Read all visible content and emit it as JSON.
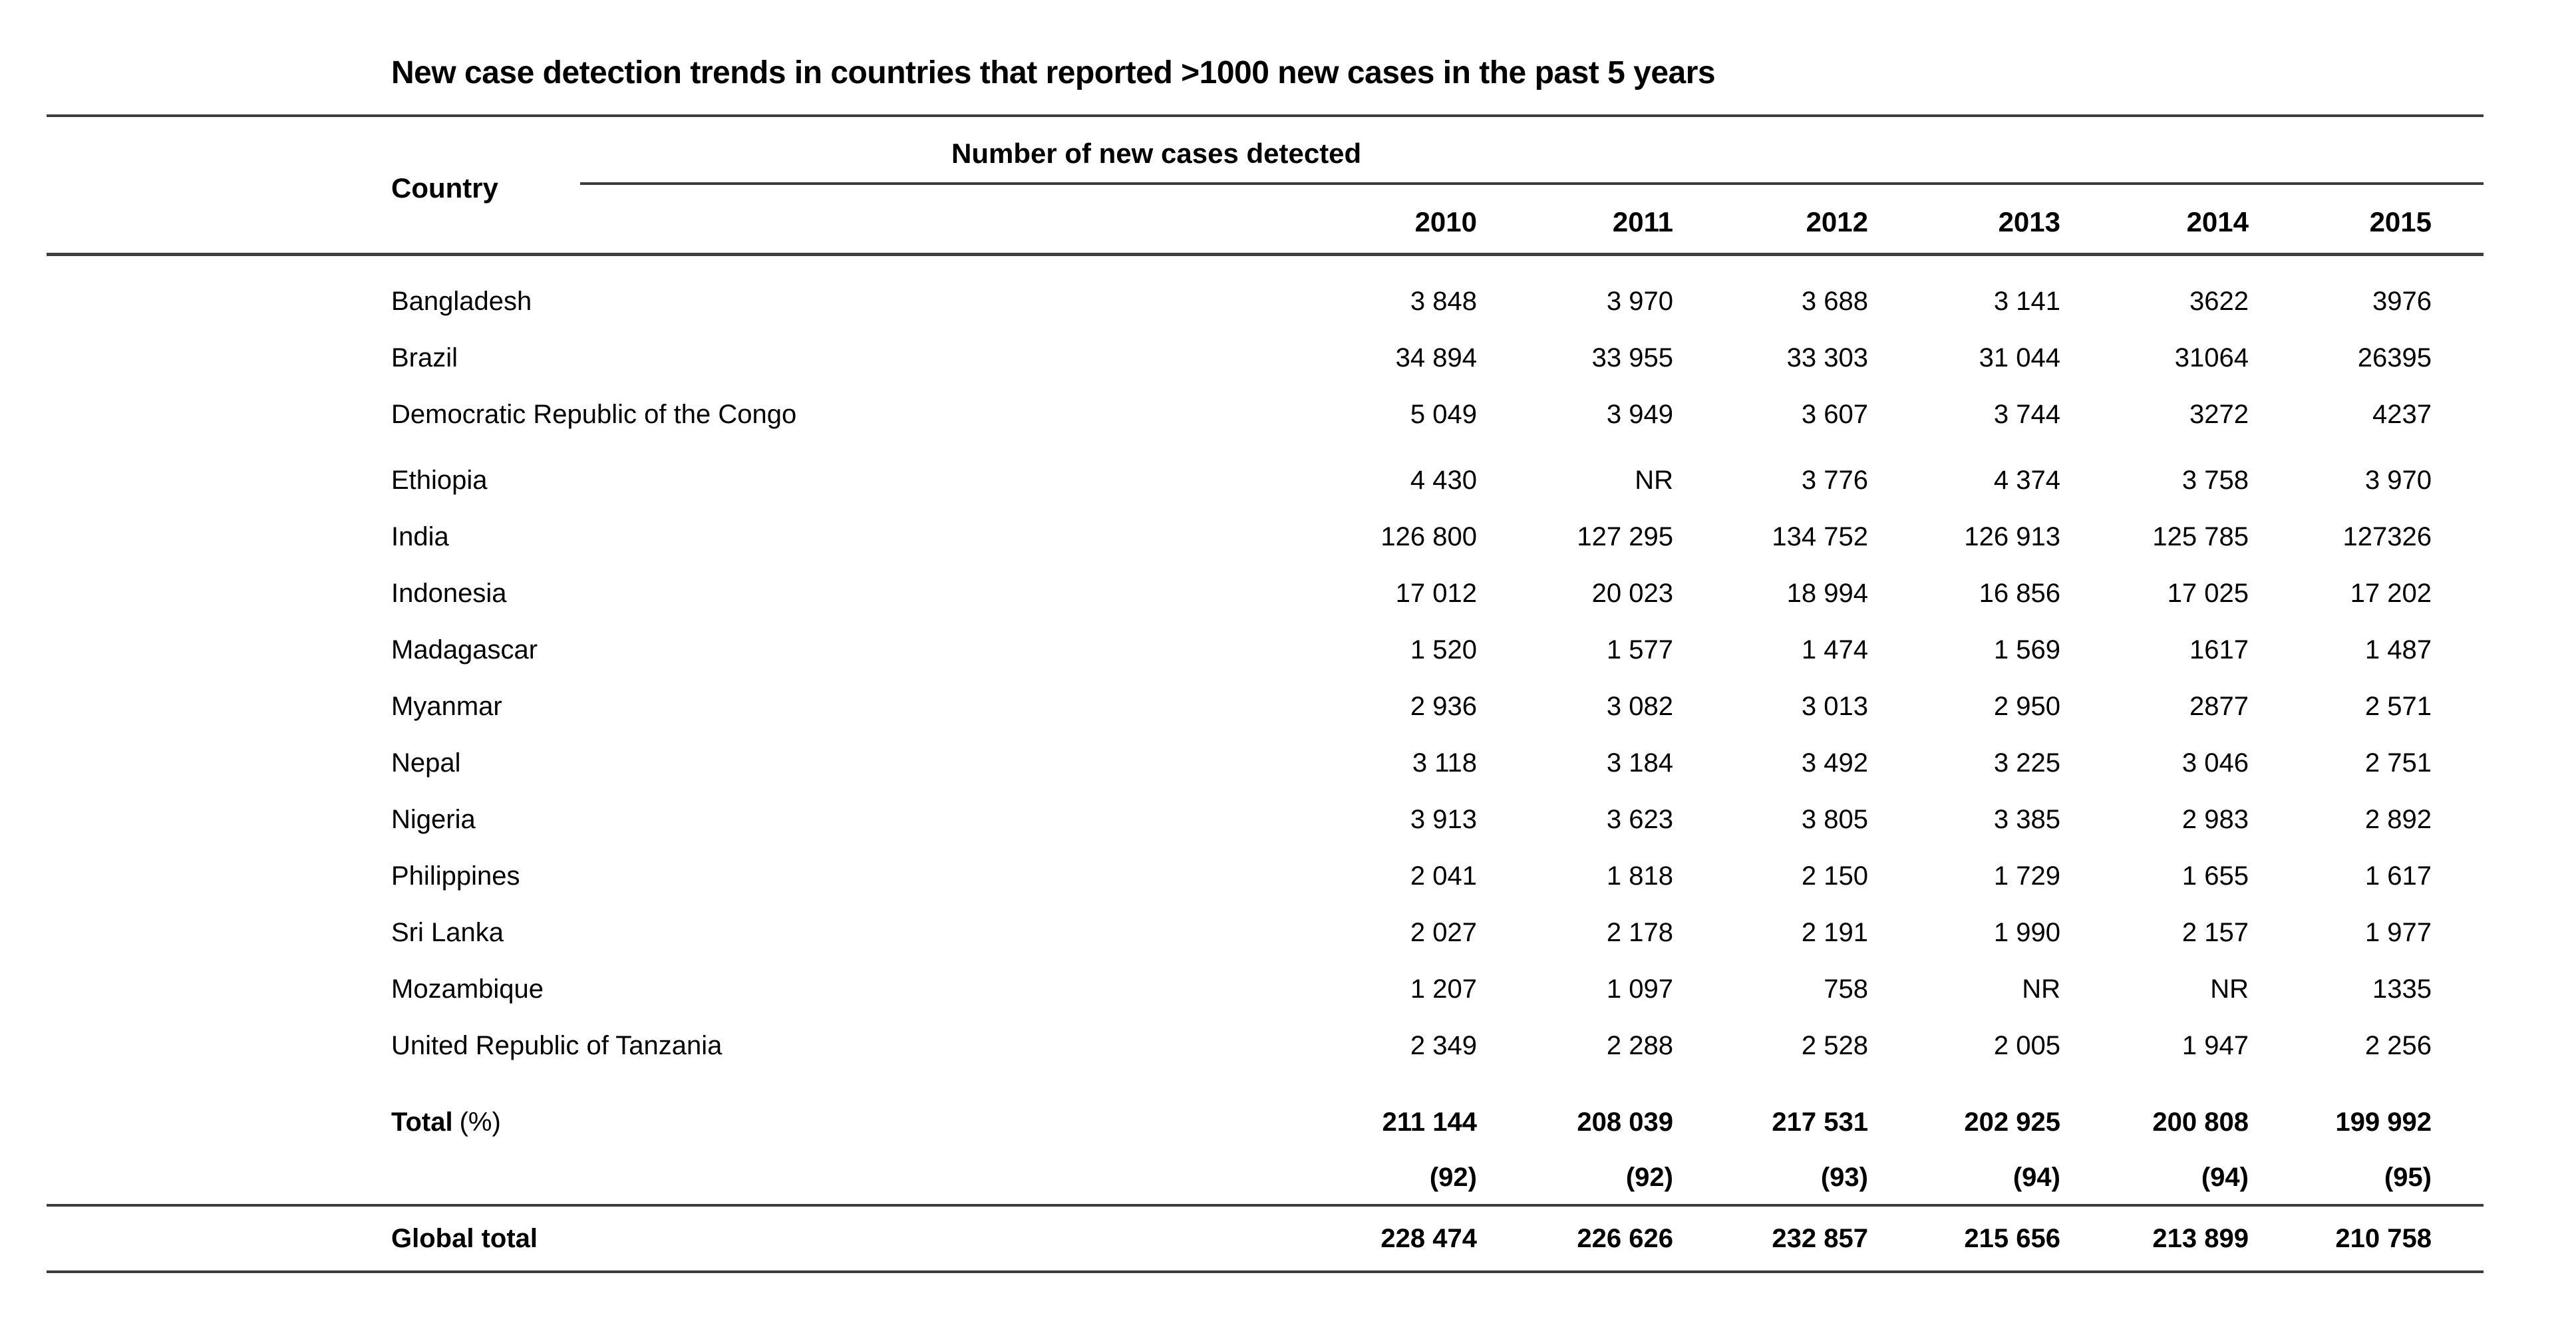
{
  "title": "New case detection trends in countries that reported >1000 new cases in the past 5 years",
  "table": {
    "country_header": "Country",
    "group_header": "Number of new cases detected",
    "years": [
      "2010",
      "2011",
      "2012",
      "2013",
      "2014",
      "2015"
    ],
    "rows": [
      {
        "country": "Bangladesh",
        "values": [
          "3 848",
          "3 970",
          "3 688",
          "3 141",
          "3622",
          "3976"
        ]
      },
      {
        "country": "Brazil",
        "values": [
          "34 894",
          "33 955",
          "33 303",
          "31 044",
          "31064",
          "26395"
        ]
      },
      {
        "country": "Democratic Republic of the Congo",
        "values": [
          "5 049",
          "3 949",
          "3 607",
          "3 744",
          "3272",
          "4237"
        ]
      },
      {
        "country": "Ethiopia",
        "values": [
          "4 430",
          "NR",
          "3 776",
          "4 374",
          "3 758",
          "3 970"
        ]
      },
      {
        "country": "India",
        "values": [
          "126 800",
          "127 295",
          "134 752",
          "126 913",
          "125 785",
          "127326"
        ]
      },
      {
        "country": "Indonesia",
        "values": [
          "17 012",
          "20 023",
          "18 994",
          "16 856",
          "17 025",
          "17 202"
        ]
      },
      {
        "country": "Madagascar",
        "values": [
          "1 520",
          "1 577",
          "1 474",
          "1 569",
          "1617",
          "1 487"
        ]
      },
      {
        "country": "Myanmar",
        "values": [
          "2 936",
          "3 082",
          "3 013",
          "2 950",
          "2877",
          "2 571"
        ]
      },
      {
        "country": "Nepal",
        "values": [
          "3 118",
          "3 184",
          "3 492",
          "3 225",
          "3 046",
          "2 751"
        ]
      },
      {
        "country": "Nigeria",
        "values": [
          "3 913",
          "3 623",
          "3 805",
          "3 385",
          "2 983",
          "2 892"
        ]
      },
      {
        "country": "Philippines",
        "values": [
          "2 041",
          "1 818",
          "2 150",
          "1 729",
          "1 655",
          "1 617"
        ]
      },
      {
        "country": "Sri Lanka",
        "values": [
          "2 027",
          "2 178",
          "2 191",
          "1 990",
          "2 157",
          "1 977"
        ]
      },
      {
        "country": "Mozambique",
        "values": [
          "1 207",
          "1 097",
          "758",
          "NR",
          "NR",
          "1335"
        ]
      },
      {
        "country": "United Republic of Tanzania",
        "values": [
          "2 349",
          "2 288",
          "2 528",
          "2 005",
          "1 947",
          "2 256"
        ]
      }
    ],
    "total_row": {
      "label": "Total",
      "label_suffix": "(%)",
      "values": [
        "211 144",
        "208 039",
        "217 531",
        "202 925",
        "200 808",
        "199 992"
      ],
      "percents": [
        "(92)",
        "(92)",
        "(93)",
        "(94)",
        "(94)",
        "(95)"
      ]
    },
    "global_row": {
      "label": "Global total",
      "values": [
        "228 474",
        "226 626",
        "232 857",
        "215 656",
        "213 899",
        "210 758"
      ]
    }
  },
  "colors": {
    "background": "#ffffff",
    "text": "#000000",
    "rule": "#3d3d3d"
  }
}
